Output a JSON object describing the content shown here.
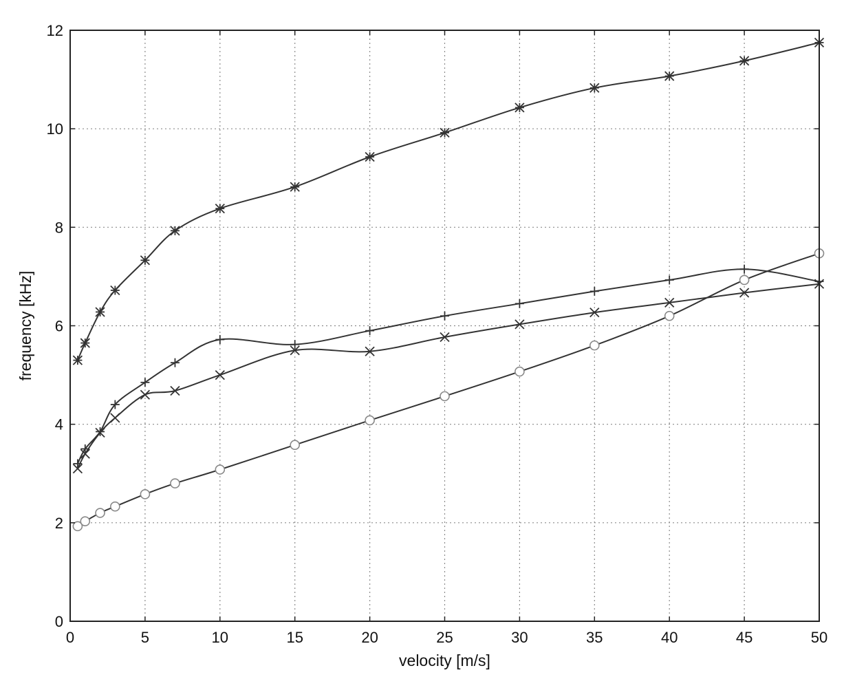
{
  "chart_data": {
    "type": "line",
    "title": "",
    "xlabel": "velocity [m/s]",
    "ylabel": "frequency [kHz]",
    "xlim": [
      0,
      50
    ],
    "ylim": [
      0,
      12
    ],
    "xticks": [
      0,
      5,
      10,
      15,
      20,
      25,
      30,
      35,
      40,
      45,
      50
    ],
    "yticks": [
      0,
      2,
      4,
      6,
      8,
      10,
      12
    ],
    "grid": true,
    "legend": "none",
    "series": [
      {
        "marker": "asterisk",
        "color": "#333333",
        "x": [
          0.5,
          1,
          2,
          3,
          5,
          7,
          10,
          15,
          20,
          25,
          30,
          35,
          40,
          45,
          50
        ],
        "y": [
          5.3,
          5.65,
          6.28,
          6.72,
          7.33,
          7.93,
          8.38,
          8.82,
          9.43,
          9.92,
          10.43,
          10.83,
          11.07,
          11.38,
          11.75
        ]
      },
      {
        "marker": "plus",
        "color": "#333333",
        "x": [
          0.5,
          1,
          2,
          3,
          5,
          7,
          10,
          15,
          20,
          25,
          30,
          35,
          40,
          45,
          50
        ],
        "y": [
          3.2,
          3.5,
          3.85,
          4.4,
          4.85,
          5.25,
          5.72,
          5.62,
          5.9,
          6.2,
          6.45,
          6.7,
          6.93,
          7.15,
          6.9
        ]
      },
      {
        "marker": "x",
        "color": "#333333",
        "x": [
          0.5,
          1,
          2,
          3,
          5,
          7,
          10,
          15,
          20,
          25,
          30,
          35,
          40,
          45,
          50
        ],
        "y": [
          3.1,
          3.4,
          3.83,
          4.13,
          4.6,
          4.68,
          5.0,
          5.5,
          5.48,
          5.77,
          6.03,
          6.27,
          6.47,
          6.67,
          6.85
        ]
      },
      {
        "marker": "circle",
        "color": "#666666",
        "x": [
          0.5,
          1,
          2,
          3,
          5,
          7,
          10,
          15,
          20,
          25,
          30,
          35,
          40,
          45,
          50
        ],
        "y": [
          1.93,
          2.03,
          2.2,
          2.33,
          2.58,
          2.8,
          3.08,
          3.58,
          4.08,
          4.57,
          5.07,
          5.6,
          6.2,
          6.93,
          7.47
        ]
      }
    ]
  }
}
